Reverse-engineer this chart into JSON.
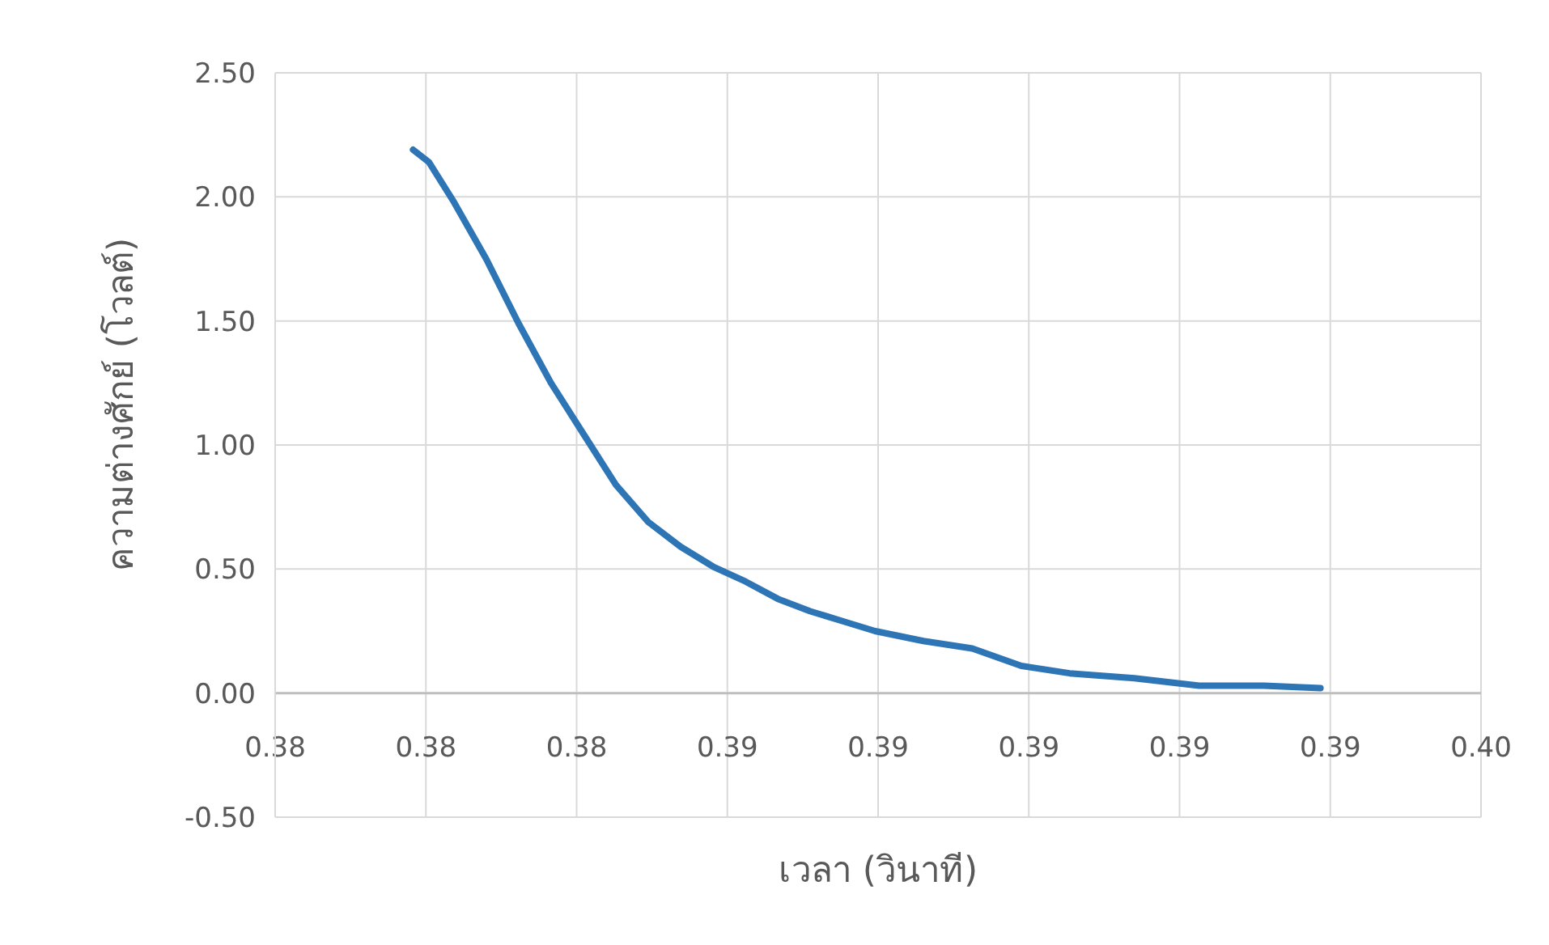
{
  "chart_data": {
    "type": "line",
    "xlabel": "เวลา (วินาที)",
    "ylabel": "ความต่างศักย์ (โวลต์)",
    "x": [
      0.38183,
      0.38204,
      0.38237,
      0.3828,
      0.38323,
      0.38366,
      0.3841,
      0.38452,
      0.38495,
      0.38538,
      0.38581,
      0.38624,
      0.38667,
      0.3871,
      0.38753,
      0.38796,
      0.3886,
      0.38925,
      0.3899,
      0.39054,
      0.3914,
      0.39226,
      0.39312,
      0.39387
    ],
    "series": [
      {
        "color": "#2e75b6",
        "values": [
          2.19,
          2.14,
          1.98,
          1.75,
          1.49,
          1.25,
          1.04,
          0.84,
          0.69,
          0.59,
          0.51,
          0.45,
          0.38,
          0.33,
          0.29,
          0.25,
          0.21,
          0.18,
          0.11,
          0.08,
          0.06,
          0.03,
          0.03,
          0.02
        ]
      }
    ],
    "xlim": [
      0.38,
      0.396
    ],
    "ylim": [
      -0.5,
      2.5
    ],
    "xticks": [
      {
        "value": 0.38,
        "label": "0.38"
      },
      {
        "value": 0.382,
        "label": "0.38"
      },
      {
        "value": 0.384,
        "label": "0.38"
      },
      {
        "value": 0.386,
        "label": "0.39"
      },
      {
        "value": 0.388,
        "label": "0.39"
      },
      {
        "value": 0.39,
        "label": "0.39"
      },
      {
        "value": 0.392,
        "label": "0.39"
      },
      {
        "value": 0.394,
        "label": "0.39"
      },
      {
        "value": 0.396,
        "label": "0.40"
      }
    ],
    "yticks": [
      {
        "value": -0.5,
        "label": "-0.50"
      },
      {
        "value": 0,
        "label": "0.00"
      },
      {
        "value": 0.5,
        "label": "0.50"
      },
      {
        "value": 1,
        "label": "1.00"
      },
      {
        "value": 1.5,
        "label": "1.50"
      },
      {
        "value": 2,
        "label": "2.00"
      },
      {
        "value": 2.5,
        "label": "2.50"
      }
    ],
    "grid": true,
    "marker": "none",
    "line_style": "solid"
  }
}
